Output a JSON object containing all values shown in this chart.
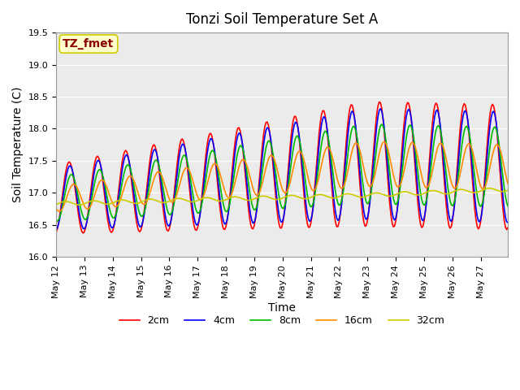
{
  "title": "Tonzi Soil Temperature Set A",
  "xlabel": "Time",
  "ylabel": "Soil Temperature (C)",
  "ylim": [
    16.0,
    19.5
  ],
  "annotation_text": "TZ_fmet",
  "annotation_color": "#8B0000",
  "annotation_bg": "#FFFFCC",
  "annotation_border": "#CCCC00",
  "line_colors": {
    "2cm": "#FF0000",
    "4cm": "#0000FF",
    "8cm": "#00BB00",
    "16cm": "#FF8C00",
    "32cm": "#CCCC00"
  },
  "x_tick_labels": [
    "May 12",
    "May 13",
    "May 14",
    "May 15",
    "May 16",
    "May 17",
    "May 18",
    "May 19",
    "May 20",
    "May 21",
    "May 22",
    "May 23",
    "May 24",
    "May 25",
    "May 26",
    "May 27"
  ],
  "n_days": 16,
  "pts_per_day": 24,
  "title_fontsize": 12,
  "axis_label_fontsize": 10,
  "tick_fontsize": 8
}
